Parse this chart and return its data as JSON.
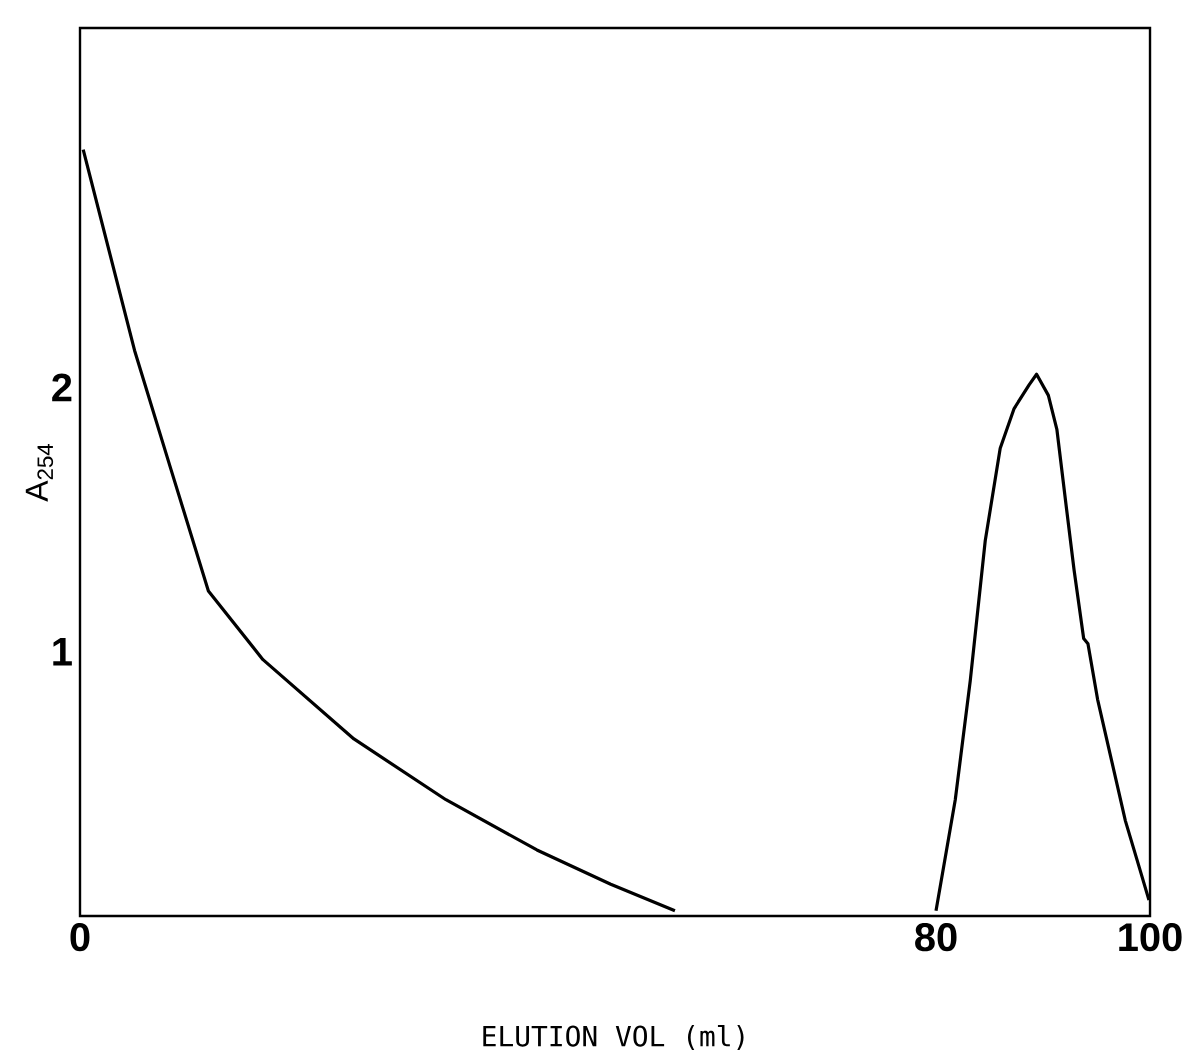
{
  "chart_data": {
    "type": "line",
    "xlabel": "ELUTION VOL (ml)",
    "ylabel": "A$_{254}$",
    "xlim": [
      0,
      100
    ],
    "xticks": [
      0,
      80,
      100
    ],
    "ylim": [
      0,
      3.36
    ],
    "yticks": [
      1,
      2
    ],
    "grid": false,
    "marker": "none",
    "line_style": "solid",
    "series": [
      {
        "color": "#000000",
        "x": [
          0.3,
          5.1,
          8.5,
          12.0,
          17.1,
          25.6,
          34.2,
          42.7,
          49.6,
          55.6
        ],
        "values": [
          2.9,
          2.14,
          1.69,
          1.23,
          0.97,
          0.67,
          0.44,
          0.25,
          0.12,
          0.02
        ]
      },
      {
        "color": "#000000",
        "x": [
          80,
          81.8,
          83.2,
          84.6,
          86.0,
          87.3,
          88.7,
          89.4,
          90.5,
          91.3,
          92.2,
          92.9,
          93.8,
          94.2,
          95.1,
          96.4,
          97.7,
          99.1,
          99.9
        ],
        "values": [
          0.02,
          0.44,
          0.89,
          1.42,
          1.77,
          1.92,
          2.01,
          2.05,
          1.97,
          1.84,
          1.54,
          1.31,
          1.05,
          1.03,
          0.82,
          0.59,
          0.36,
          0.17,
          0.06
        ]
      }
    ]
  }
}
